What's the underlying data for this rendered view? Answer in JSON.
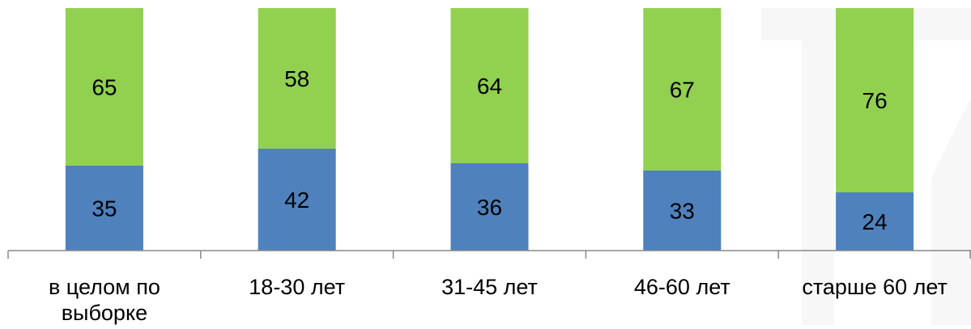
{
  "chart_data": {
    "type": "bar",
    "stacked": true,
    "normalized_percent": true,
    "categories": [
      [
        "в целом по",
        "выборке"
      ],
      [
        "18-30 лет"
      ],
      [
        "31-45 лет"
      ],
      [
        "46-60 лет"
      ],
      [
        "старше 60 лет"
      ]
    ],
    "series": [
      {
        "values": [
          35,
          42,
          36,
          33,
          24
        ],
        "color": "#4f81bd"
      },
      {
        "values": [
          65,
          58,
          64,
          67,
          76
        ],
        "color": "#92d050"
      }
    ],
    "title": "",
    "xlabel": "",
    "ylabel": "",
    "ylim": [
      0,
      100
    ],
    "grid": false,
    "legend": "none",
    "data_labels": true
  }
}
